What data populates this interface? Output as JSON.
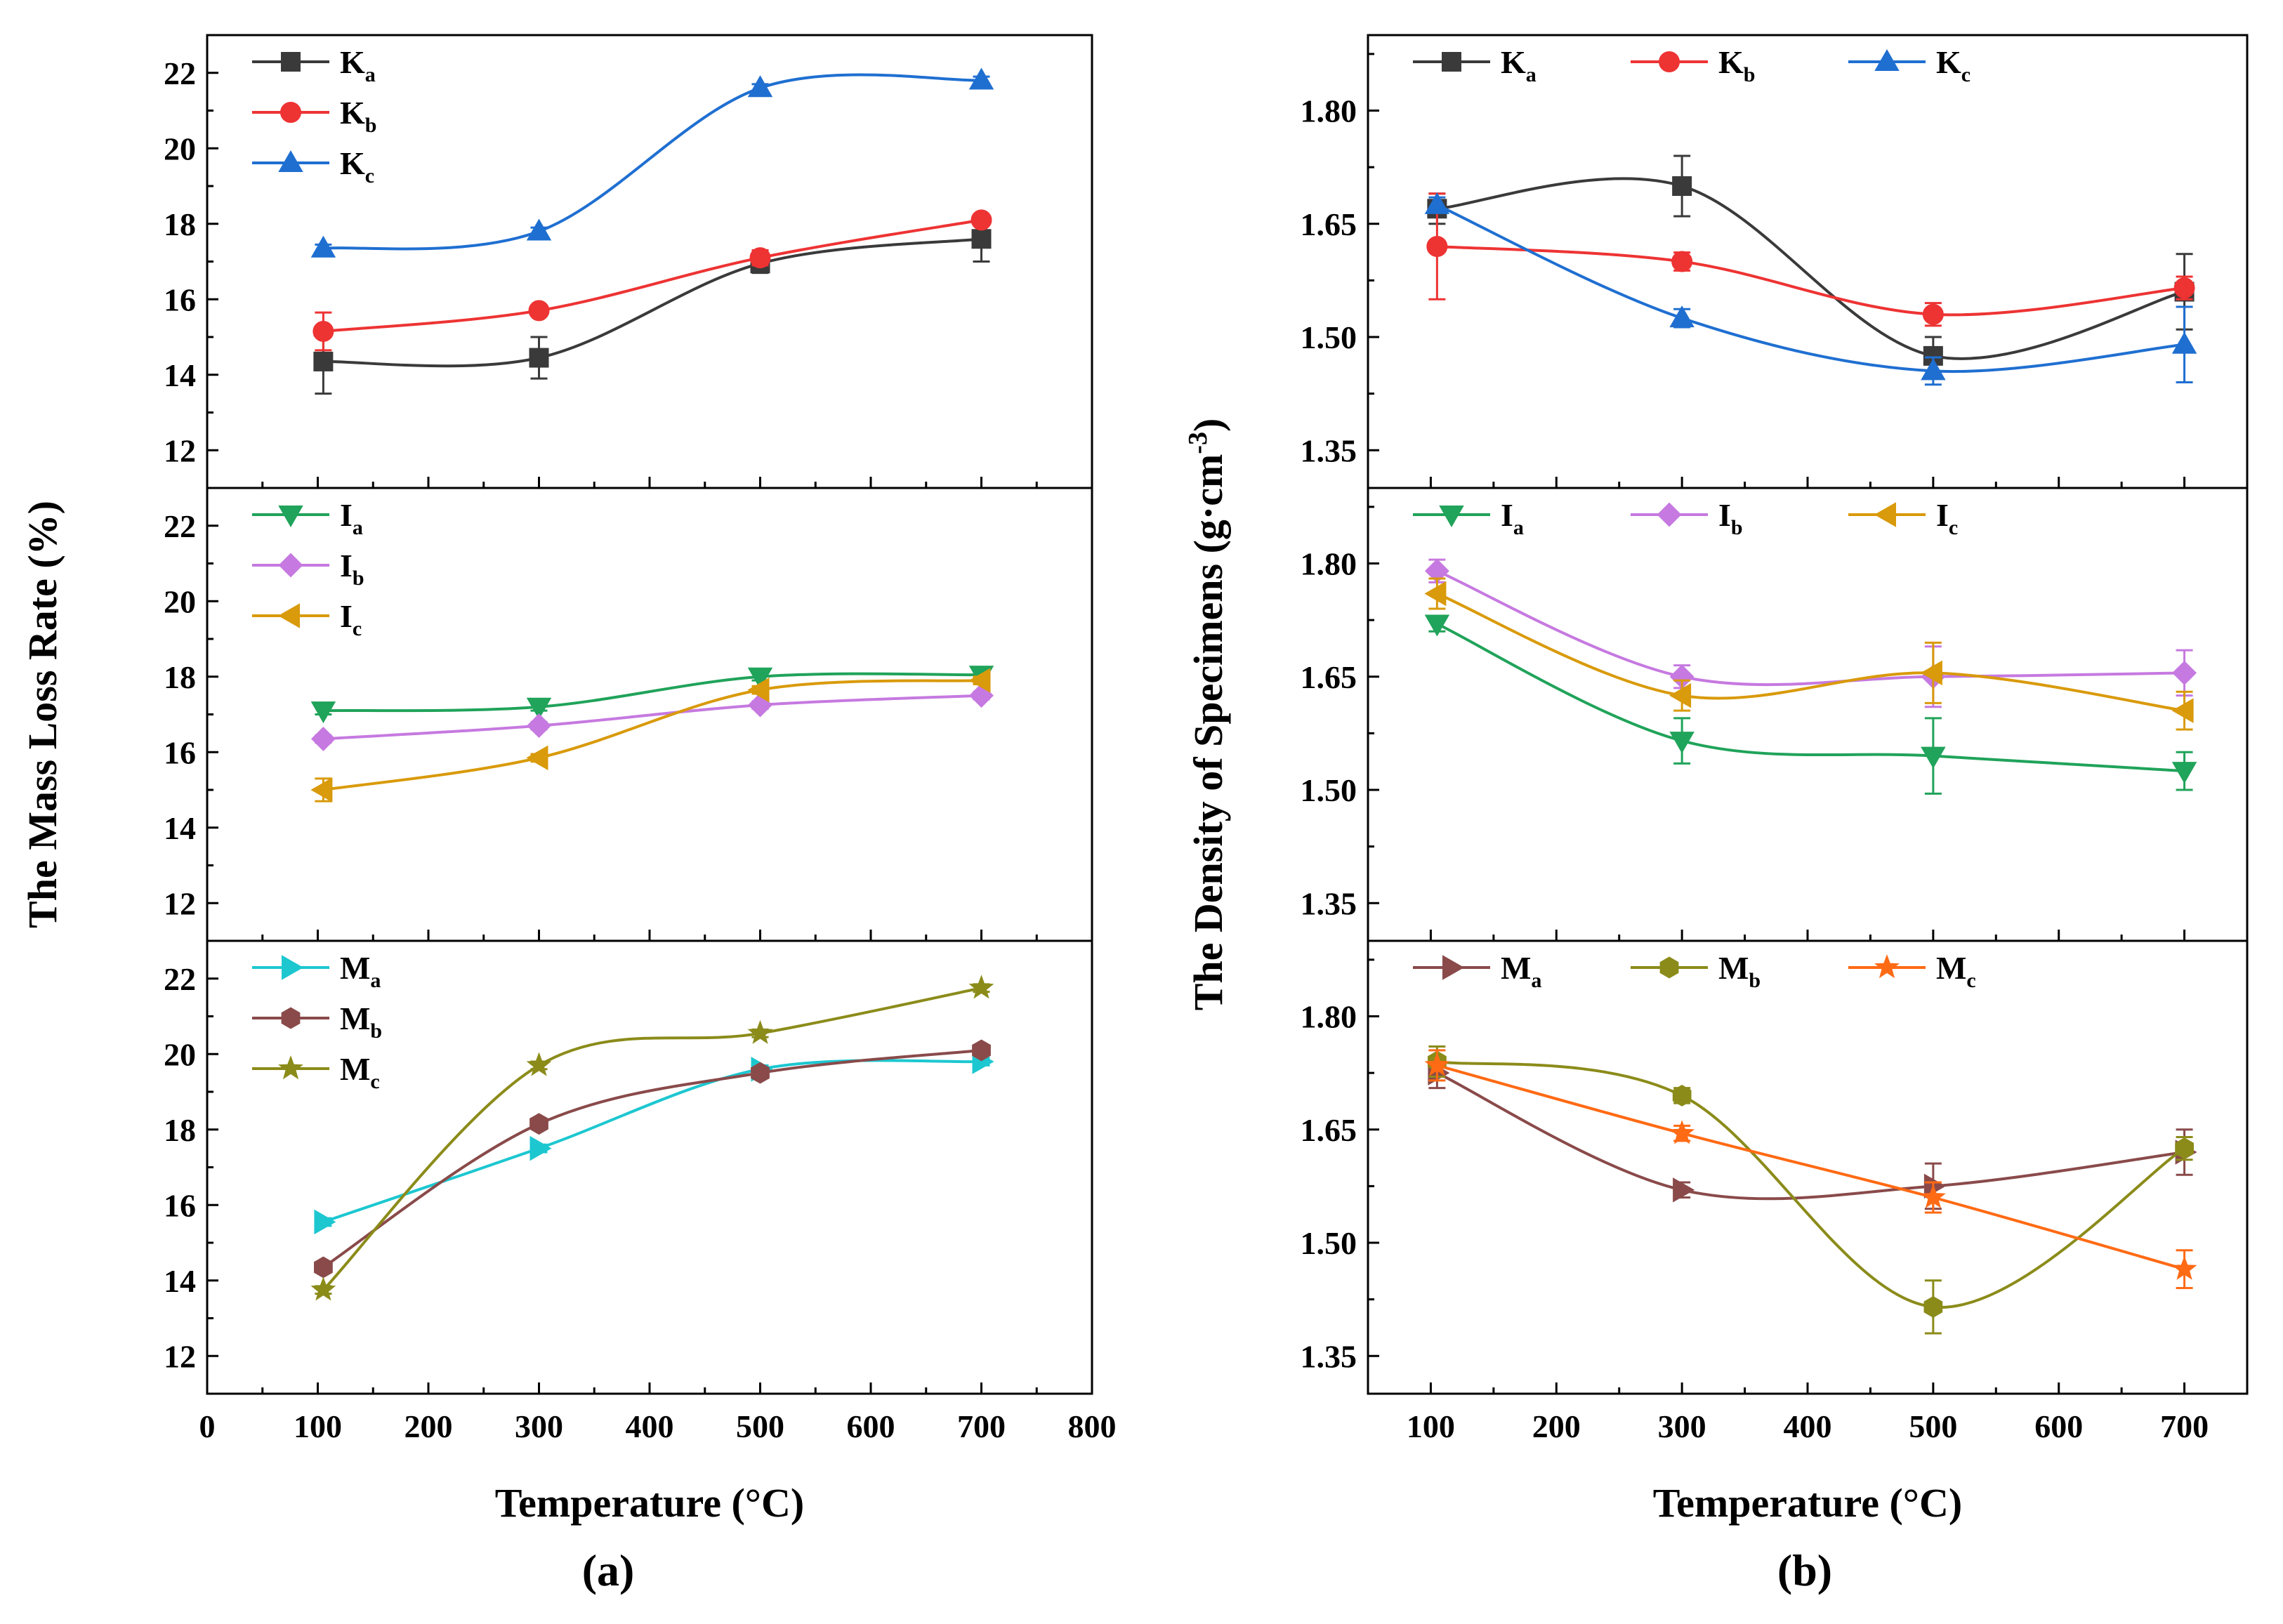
{
  "figure": {
    "panel_a_label": "(a)",
    "panel_b_label": "(b)"
  },
  "chart_data": [
    {
      "id": "a",
      "type": "line",
      "panel_label": "(a)",
      "xlabel": "Temperature (°C)",
      "ylabel": "The Mass Loss Rate (%)",
      "xlim": [
        0,
        800
      ],
      "x_ticks": [
        0,
        100,
        200,
        300,
        400,
        500,
        600,
        700,
        800
      ],
      "ylim": [
        11,
        23
      ],
      "y_ticks": [
        12,
        14,
        16,
        18,
        20,
        22
      ],
      "grid": false,
      "legend_position": "top-left",
      "x": [
        105,
        300,
        500,
        700
      ],
      "subplots": [
        {
          "series": [
            {
              "name": "Ka",
              "base": "K",
              "sub": "a",
              "color": "#3a3a3a",
              "marker": "square",
              "values": [
                14.35,
                14.45,
                16.95,
                17.6
              ],
              "errors": [
                0.85,
                0.55,
                0.25,
                0.6
              ]
            },
            {
              "name": "Kb",
              "base": "K",
              "sub": "b",
              "color": "#ee3333",
              "marker": "circle",
              "values": [
                15.15,
                15.7,
                17.1,
                18.1
              ],
              "errors": [
                0.5,
                0.1,
                0.2,
                0.1
              ]
            },
            {
              "name": "Kc",
              "base": "K",
              "sub": "c",
              "color": "#1f6fd1",
              "marker": "triangle-up",
              "values": [
                17.35,
                17.8,
                21.6,
                21.8
              ],
              "errors": [
                0.1,
                0.1,
                0.1,
                0.1
              ]
            }
          ]
        },
        {
          "series": [
            {
              "name": "Ia",
              "base": "I",
              "sub": "a",
              "color": "#20a35a",
              "marker": "triangle-down",
              "values": [
                17.1,
                17.2,
                18.0,
                18.05
              ],
              "errors": [
                0.1,
                0.1,
                0.1,
                0.1
              ]
            },
            {
              "name": "Ib",
              "base": "I",
              "sub": "b",
              "color": "#c679e0",
              "marker": "diamond",
              "values": [
                16.35,
                16.7,
                17.25,
                17.5
              ],
              "errors": [
                0.1,
                0.1,
                0.1,
                0.1
              ]
            },
            {
              "name": "Ic",
              "base": "I",
              "sub": "c",
              "color": "#d99a0b",
              "marker": "triangle-left",
              "values": [
                15.0,
                15.85,
                17.65,
                17.9
              ],
              "errors": [
                0.3,
                0.1,
                0.1,
                0.1
              ]
            }
          ]
        },
        {
          "series": [
            {
              "name": "Ma",
              "base": "M",
              "sub": "a",
              "color": "#1cc7d0",
              "marker": "triangle-right",
              "values": [
                15.55,
                17.5,
                19.6,
                19.8
              ],
              "errors": [
                0.1,
                0.1,
                0.1,
                0.1
              ]
            },
            {
              "name": "Mb",
              "base": "M",
              "sub": "b",
              "color": "#8a4a4a",
              "marker": "hexagon",
              "values": [
                14.35,
                18.15,
                19.5,
                20.1
              ],
              "errors": [
                0.1,
                0.1,
                0.1,
                0.1
              ]
            },
            {
              "name": "Mc",
              "base": "M",
              "sub": "c",
              "color": "#8b8b1a",
              "marker": "star",
              "values": [
                13.75,
                19.7,
                20.55,
                21.75
              ],
              "errors": [
                0.1,
                0.1,
                0.1,
                0.1
              ]
            }
          ]
        }
      ]
    },
    {
      "id": "b",
      "type": "line",
      "panel_label": "(b)",
      "xlabel": "Temperature (°C)",
      "ylabel": "The Density of Specimens (g·cm",
      "ylabel_sup": "-3",
      "ylabel_close": ")",
      "xlim": [
        50,
        750
      ],
      "x_ticks": [
        100,
        200,
        300,
        400,
        500,
        600,
        700
      ],
      "ylim": [
        1.3,
        1.9
      ],
      "y_ticks": [
        1.35,
        1.5,
        1.65,
        1.8
      ],
      "grid": false,
      "legend_position": "top-left",
      "x": [
        105,
        300,
        500,
        700
      ],
      "subplots": [
        {
          "series": [
            {
              "name": "Ka",
              "base": "K",
              "sub": "a",
              "color": "#3a3a3a",
              "marker": "square",
              "values": [
                1.67,
                1.7,
                1.475,
                1.56
              ],
              "errors": [
                0.02,
                0.04,
                0.025,
                0.05
              ]
            },
            {
              "name": "Kb",
              "base": "K",
              "sub": "b",
              "color": "#ee3333",
              "marker": "circle",
              "values": [
                1.62,
                1.6,
                1.53,
                1.565
              ],
              "errors": [
                0.07,
                0.012,
                0.015,
                0.015
              ]
            },
            {
              "name": "Kc",
              "base": "K",
              "sub": "c",
              "color": "#1f6fd1",
              "marker": "triangle-up",
              "values": [
                1.675,
                1.525,
                1.455,
                1.49
              ],
              "errors": [
                0.01,
                0.012,
                0.018,
                0.05
              ]
            }
          ]
        },
        {
          "series": [
            {
              "name": "Ia",
              "base": "I",
              "sub": "a",
              "color": "#20a35a",
              "marker": "triangle-down",
              "values": [
                1.72,
                1.565,
                1.545,
                1.525
              ],
              "errors": [
                0.01,
                0.03,
                0.05,
                0.025
              ]
            },
            {
              "name": "Ib",
              "base": "I",
              "sub": "b",
              "color": "#c679e0",
              "marker": "diamond",
              "values": [
                1.79,
                1.65,
                1.65,
                1.655
              ],
              "errors": [
                0.015,
                0.015,
                0.04,
                0.03
              ]
            },
            {
              "name": "Ic",
              "base": "I",
              "sub": "c",
              "color": "#d99a0b",
              "marker": "triangle-left",
              "values": [
                1.76,
                1.625,
                1.655,
                1.605
              ],
              "errors": [
                0.02,
                0.02,
                0.04,
                0.025
              ]
            }
          ]
        },
        {
          "series": [
            {
              "name": "Ma",
              "base": "M",
              "sub": "a",
              "color": "#8a4a4a",
              "marker": "triangle-right",
              "values": [
                1.725,
                1.57,
                1.575,
                1.62
              ],
              "errors": [
                0.02,
                0.01,
                0.03,
                0.03
              ]
            },
            {
              "name": "Mb",
              "base": "M",
              "sub": "b",
              "color": "#8b8b1a",
              "marker": "hexagon",
              "values": [
                1.74,
                1.695,
                1.415,
                1.625
              ],
              "errors": [
                0.02,
                0.01,
                0.035,
                0.015
              ]
            },
            {
              "name": "Mc",
              "base": "M",
              "sub": "c",
              "color": "#ff6a14",
              "marker": "star",
              "values": [
                1.735,
                1.645,
                1.56,
                1.465
              ],
              "errors": [
                0.02,
                0.01,
                0.02,
                0.025
              ]
            }
          ]
        }
      ]
    }
  ]
}
